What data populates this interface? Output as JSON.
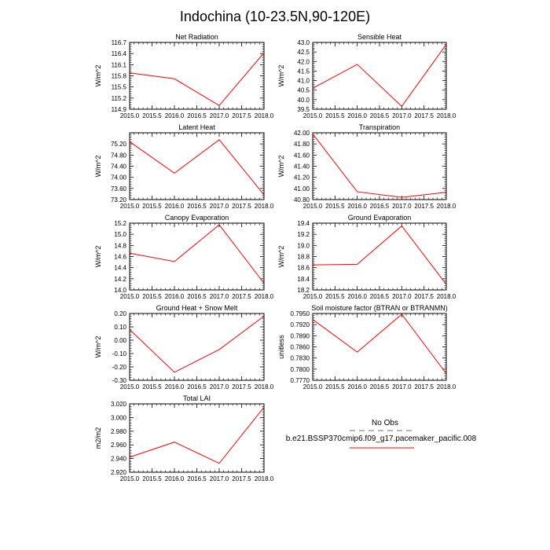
{
  "title": "Indochina (10-23.5N,90-120E)",
  "colors": {
    "series": "#ff0000",
    "obs": "#9999cc",
    "axis": "#000000"
  },
  "legend": {
    "obs_label": "No Obs",
    "model_label": "b.e21.BSSP370cmip6.f09_g17.pacemaker_pacific.008"
  },
  "chart_data": [
    {
      "type": "line",
      "title": "Net Radiation",
      "ylabel": "W/m^2",
      "x": [
        2015.0,
        2016.0,
        2017.0,
        2018.0
      ],
      "values": [
        115.88,
        115.72,
        115.0,
        116.42
      ],
      "xlim": [
        2015.0,
        2018.0
      ],
      "ylim": [
        114.9,
        116.7
      ],
      "xticks": [
        "2015.0",
        "2015.5",
        "2016.0",
        "2016.5",
        "2017.0",
        "2017.5",
        "2018.0"
      ],
      "yticks": [
        "114.9",
        "115.2",
        "115.5",
        "115.8",
        "116.1",
        "116.4",
        "116.7"
      ]
    },
    {
      "type": "line",
      "title": "Sensible Heat",
      "ylabel": "W/m^2",
      "x": [
        2015.0,
        2016.0,
        2017.0,
        2018.0
      ],
      "values": [
        40.6,
        41.85,
        39.65,
        42.9
      ],
      "xlim": [
        2015.0,
        2018.0
      ],
      "ylim": [
        39.5,
        43.0
      ],
      "xticks": [
        "2015.0",
        "2015.5",
        "2016.0",
        "2016.5",
        "2017.0",
        "2017.5",
        "2018.0"
      ],
      "yticks": [
        "39.5",
        "40.0",
        "40.5",
        "41.0",
        "41.5",
        "42.0",
        "42.5",
        "43.0"
      ]
    },
    {
      "type": "line",
      "title": "Latent Heat",
      "ylabel": "W/m^2",
      "x": [
        2015.0,
        2016.0,
        2017.0,
        2018.0
      ],
      "values": [
        75.28,
        74.15,
        75.35,
        73.37
      ],
      "xlim": [
        2015.0,
        2018.0
      ],
      "ylim": [
        73.2,
        75.6
      ],
      "xticks": [
        "2015.0",
        "2015.5",
        "2016.0",
        "2016.5",
        "2017.0",
        "2017.5",
        "2018.0"
      ],
      "yticks": [
        "73.20",
        "73.60",
        "74.00",
        "74.40",
        "74.80",
        "75.20"
      ]
    },
    {
      "type": "line",
      "title": "Transpiration",
      "ylabel": "W/m^2",
      "x": [
        2015.0,
        2016.0,
        2017.0,
        2018.0
      ],
      "values": [
        41.98,
        40.94,
        40.84,
        40.93
      ],
      "xlim": [
        2015.0,
        2018.0
      ],
      "ylim": [
        40.8,
        42.0
      ],
      "xticks": [
        "2015.0",
        "2015.5",
        "2016.0",
        "2016.5",
        "2017.0",
        "2017.5",
        "2018.0"
      ],
      "yticks": [
        "40.80",
        "41.00",
        "41.20",
        "41.40",
        "41.60",
        "41.80",
        "42.00"
      ]
    },
    {
      "type": "line",
      "title": "Canopy Evaporation",
      "ylabel": "W/m^2",
      "x": [
        2015.0,
        2016.0,
        2017.0,
        2018.0
      ],
      "values": [
        14.66,
        14.51,
        15.17,
        14.12
      ],
      "xlim": [
        2015.0,
        2018.0
      ],
      "ylim": [
        14.0,
        15.2
      ],
      "xticks": [
        "2015.0",
        "2015.5",
        "2016.0",
        "2016.5",
        "2017.0",
        "2017.5",
        "2018.0"
      ],
      "yticks": [
        "14.0",
        "14.2",
        "14.4",
        "14.6",
        "14.8",
        "15.0",
        "15.2"
      ]
    },
    {
      "type": "line",
      "title": "Ground Evaporation",
      "ylabel": "W/m^2",
      "x": [
        2015.0,
        2016.0,
        2017.0,
        2018.0
      ],
      "values": [
        18.65,
        18.66,
        19.35,
        18.3
      ],
      "xlim": [
        2015.0,
        2018.0
      ],
      "ylim": [
        18.2,
        19.4
      ],
      "xticks": [
        "2015.0",
        "2015.5",
        "2016.0",
        "2016.5",
        "2017.0",
        "2017.5",
        "2018.0"
      ],
      "yticks": [
        "18.2",
        "18.4",
        "18.6",
        "18.8",
        "19.0",
        "19.2",
        "19.4"
      ]
    },
    {
      "type": "line",
      "title": "Ground Heat + Snow Melt",
      "ylabel": "W/m^2",
      "x": [
        2015.0,
        2016.0,
        2017.0,
        2018.0
      ],
      "values": [
        0.08,
        -0.24,
        -0.07,
        0.18
      ],
      "xlim": [
        2015.0,
        2018.0
      ],
      "ylim": [
        -0.3,
        0.2
      ],
      "xticks": [
        "2015.0",
        "2015.5",
        "2016.0",
        "2016.5",
        "2017.0",
        "2017.5",
        "2018.0"
      ],
      "yticks": [
        "-0.30",
        "-0.20",
        "-0.10",
        "0.00",
        "0.10",
        "0.20"
      ]
    },
    {
      "type": "line",
      "title": "Soil moisture factor (BTRAN or BTRANMN)",
      "ylabel": "unitless",
      "x": [
        2015.0,
        2016.0,
        2017.0,
        2018.0
      ],
      "values": [
        0.7934,
        0.7846,
        0.7948,
        0.7788
      ],
      "xlim": [
        2015.0,
        2018.0
      ],
      "ylim": [
        0.777,
        0.795
      ],
      "xticks": [
        "2015.0",
        "2015.5",
        "2016.0",
        "2016.5",
        "2017.0",
        "2017.5",
        "2018.0"
      ],
      "yticks": [
        "0.7770",
        "0.7800",
        "0.7830",
        "0.7860",
        "0.7890",
        "0.7920",
        "0.7950"
      ]
    },
    {
      "type": "line",
      "title": "Total LAI",
      "ylabel": "m2/m2",
      "x": [
        2015.0,
        2016.0,
        2017.0,
        2018.0
      ],
      "values": [
        2.942,
        2.964,
        2.933,
        3.015
      ],
      "xlim": [
        2015.0,
        2018.0
      ],
      "ylim": [
        2.92,
        3.02
      ],
      "xticks": [
        "2015.0",
        "2015.5",
        "2016.0",
        "2016.5",
        "2017.0",
        "2017.5",
        "2018.0"
      ],
      "yticks": [
        "2.920",
        "2.940",
        "2.960",
        "2.980",
        "3.000",
        "3.020"
      ]
    }
  ]
}
